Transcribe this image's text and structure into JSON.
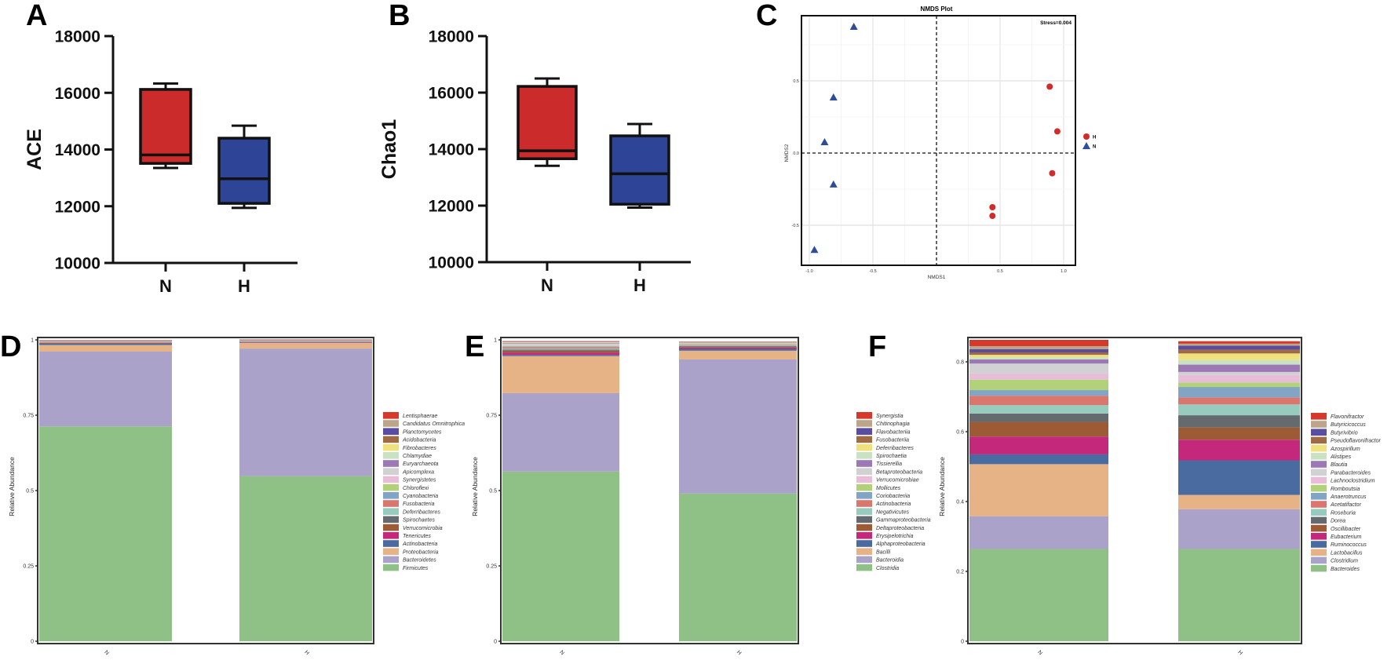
{
  "panel_labels": [
    "A",
    "B",
    "C",
    "D",
    "E",
    "F"
  ],
  "chart_data": [
    {
      "panel": "A",
      "type": "box",
      "ylabel": "ACE",
      "ylim": [
        10000,
        18000
      ],
      "yticks": [
        "10000",
        "12000",
        "14000",
        "16000",
        "18000"
      ],
      "categories": [
        "N",
        "H"
      ],
      "boxes": [
        {
          "group": "N",
          "min": 13350,
          "q1": 13510,
          "median": 13810,
          "q3": 16120,
          "max": 16330,
          "color": "#CC2B2B"
        },
        {
          "group": "H",
          "min": 11940,
          "q1": 12100,
          "median": 12970,
          "q3": 14400,
          "max": 14840,
          "color": "#2E4597"
        }
      ]
    },
    {
      "panel": "B",
      "type": "box",
      "ylabel": "Chao1",
      "ylim": [
        10000,
        18000
      ],
      "yticks": [
        "10000",
        "12000",
        "14000",
        "16000",
        "18000"
      ],
      "categories": [
        "N",
        "H"
      ],
      "boxes": [
        {
          "group": "N",
          "min": 13410,
          "q1": 13660,
          "median": 13940,
          "q3": 16220,
          "max": 16500,
          "color": "#CC2B2B"
        },
        {
          "group": "H",
          "min": 11930,
          "q1": 12050,
          "median": 13130,
          "q3": 14470,
          "max": 14890,
          "color": "#2E4597"
        }
      ]
    },
    {
      "panel": "C",
      "type": "scatter",
      "title": "NMDS Plot",
      "xlabel": "NMDS1",
      "ylabel": "NMDS2",
      "annotation": "Stress=0.004",
      "xlim": [
        -1.05,
        1.1
      ],
      "ylim": [
        -0.78,
        0.95
      ],
      "xticks": [
        "-1.0",
        "-0.5",
        "0.5",
        "1.0"
      ],
      "yticks": [
        "0.5",
        "0.0",
        "-0.5"
      ],
      "legend": [
        {
          "name": "H",
          "shape": "circle",
          "color": "#D22B2B"
        },
        {
          "name": "N",
          "shape": "triangle",
          "color": "#2E4C9A"
        }
      ],
      "series": [
        {
          "name": "H",
          "points": [
            [
              0.89,
              0.46
            ],
            [
              0.95,
              0.15
            ],
            [
              0.91,
              -0.14
            ],
            [
              0.44,
              -0.375
            ],
            [
              0.44,
              -0.435
            ]
          ]
        },
        {
          "name": "N",
          "points": [
            [
              -0.65,
              0.875
            ],
            [
              -0.81,
              0.386
            ],
            [
              -0.88,
              0.076
            ],
            [
              -0.81,
              -0.217
            ],
            [
              -0.96,
              -0.67
            ]
          ]
        }
      ]
    },
    {
      "panel": "D",
      "type": "stacked_bar",
      "ylabel": "Relative Abundance",
      "ylim": [
        0,
        1
      ],
      "yticks": [
        "0",
        "0.25",
        "0.5",
        "0.75",
        "1"
      ],
      "categories": [
        "N",
        "H"
      ],
      "series": [
        {
          "name": "Lentisphaerae",
          "color": "#D7382C",
          "values": [
            0.0005,
            0.0005
          ]
        },
        {
          "name": "Candidatus Omnitrophica",
          "color": "#BBA68A",
          "values": [
            0.0005,
            0.0005
          ]
        },
        {
          "name": "Planctomycetes",
          "color": "#5A4CA0",
          "values": [
            0.0005,
            0.0005
          ]
        },
        {
          "name": "Acidobacteria",
          "color": "#9E6B45",
          "values": [
            0.0005,
            0.0005
          ]
        },
        {
          "name": "Fibrobacteres",
          "color": "#EEE17E",
          "values": [
            0.0005,
            0.0005
          ]
        },
        {
          "name": "Chlamydiae",
          "color": "#C8E2C3",
          "values": [
            0.0005,
            0.0005
          ]
        },
        {
          "name": "Euryarchaeota",
          "color": "#9C78B5",
          "values": [
            0.0005,
            0.002
          ]
        },
        {
          "name": "Apicomplexa",
          "color": "#D1D1D3",
          "values": [
            0.0005,
            0.0005
          ]
        },
        {
          "name": "Synergistetes",
          "color": "#E8BDD8",
          "values": [
            0.0005,
            0.0005
          ]
        },
        {
          "name": "Chloroflexi",
          "color": "#B2D27A",
          "values": [
            0.0005,
            0.0005
          ]
        },
        {
          "name": "Cyanobacteria",
          "color": "#82A4C5",
          "values": [
            0.001,
            0.0005
          ]
        },
        {
          "name": "Fusobacteria",
          "color": "#D9776F",
          "values": [
            0.001,
            0.0005
          ]
        },
        {
          "name": "Deferribacteres",
          "color": "#97CBBD",
          "values": [
            0.001,
            0.0005
          ]
        },
        {
          "name": "Spirochaetes",
          "color": "#646A6E",
          "values": [
            0.001,
            0.0005
          ]
        },
        {
          "name": "Verrucomicrobia",
          "color": "#9D5B35",
          "values": [
            0.002,
            0.001
          ]
        },
        {
          "name": "Tenericutes",
          "color": "#C3287A",
          "values": [
            0.001,
            0.001
          ]
        },
        {
          "name": "Actinobacteria",
          "color": "#4A6BA0",
          "values": [
            0.004,
            0.001
          ]
        },
        {
          "name": "Proteobacteria",
          "color": "#E6B387",
          "values": [
            0.022,
            0.019
          ]
        },
        {
          "name": "Bacteroidetes",
          "color": "#AAA2C9",
          "values": [
            0.248,
            0.423
          ]
        },
        {
          "name": "Firmicutes",
          "color": "#8FC186",
          "values": [
            0.713,
            0.548
          ]
        }
      ]
    },
    {
      "panel": "E",
      "type": "stacked_bar",
      "ylabel": "Relative Abundance",
      "ylim": [
        0,
        1
      ],
      "yticks": [
        "0",
        "0.25",
        "0.5",
        "0.75",
        "1"
      ],
      "categories": [
        "N",
        "H"
      ],
      "series": [
        {
          "name": "Synergistia",
          "color": "#D7382C",
          "values": [
            0.001,
            0.0005
          ]
        },
        {
          "name": "Chitinophagia",
          "color": "#BBA68A",
          "values": [
            0.001,
            0.0005
          ]
        },
        {
          "name": "Flavobacteriia",
          "color": "#5A4CA0",
          "values": [
            0.001,
            0.0005
          ]
        },
        {
          "name": "Fusobacteriia",
          "color": "#9E6B45",
          "values": [
            0.001,
            0.0005
          ]
        },
        {
          "name": "Deferribacteres",
          "color": "#EEE17E",
          "values": [
            0.001,
            0.001
          ]
        },
        {
          "name": "Spirochaetia",
          "color": "#C8E2C3",
          "values": [
            0.002,
            0.002
          ]
        },
        {
          "name": "Tissierellia",
          "color": "#9C78B5",
          "values": [
            0.002,
            0.001
          ]
        },
        {
          "name": "Betaproteobacteria",
          "color": "#D1D1D3",
          "values": [
            0.004,
            0.001
          ]
        },
        {
          "name": "Verrucomicrobiae",
          "color": "#E8BDD8",
          "values": [
            0.003,
            0.001
          ]
        },
        {
          "name": "Mollicutes",
          "color": "#B2D27A",
          "values": [
            0.002,
            0.002
          ]
        },
        {
          "name": "Coriobacteriia",
          "color": "#82A4C5",
          "values": [
            0.003,
            0.001
          ]
        },
        {
          "name": "Actinobacteria",
          "color": "#D9776F",
          "values": [
            0.004,
            0.002
          ]
        },
        {
          "name": "Negativicutes",
          "color": "#97CBBD",
          "values": [
            0.003,
            0.002
          ]
        },
        {
          "name": "Gammaproteobacteria",
          "color": "#646A6E",
          "values": [
            0.004,
            0.003
          ]
        },
        {
          "name": "Deltaproteobacteria",
          "color": "#9D5B35",
          "values": [
            0.006,
            0.002
          ]
        },
        {
          "name": "Erysipelotrichia",
          "color": "#C3287A",
          "values": [
            0.008,
            0.004
          ]
        },
        {
          "name": "Alphaproteobacteria",
          "color": "#4A6BA0",
          "values": [
            0.004,
            0.006
          ]
        },
        {
          "name": "Bacilli",
          "color": "#E6B387",
          "values": [
            0.123,
            0.029
          ]
        },
        {
          "name": "Bacteroidia",
          "color": "#AAA2C9",
          "values": [
            0.26,
            0.445
          ]
        },
        {
          "name": "Clostridia",
          "color": "#8FC186",
          "values": [
            0.563,
            0.49
          ]
        }
      ]
    },
    {
      "panel": "F",
      "type": "stacked_bar",
      "ylabel": "Relative Abundance",
      "ylim": [
        0,
        0.87
      ],
      "yticks": [
        "0",
        "0.2",
        "0.4",
        "0.6",
        "0.8"
      ],
      "categories": [
        "N",
        "H"
      ],
      "series": [
        {
          "name": "Flavonifractor",
          "color": "#D7382C",
          "values": [
            0.018,
            0.007
          ]
        },
        {
          "name": "Butyricicoccus",
          "color": "#BBA68A",
          "values": [
            0.009,
            0.006
          ]
        },
        {
          "name": "Butyrivibrio",
          "color": "#5A4CA0",
          "values": [
            0.009,
            0.011
          ]
        },
        {
          "name": "Pseudoflavonifractor",
          "color": "#9E6B45",
          "values": [
            0.007,
            0.011
          ]
        },
        {
          "name": "Azospirillum",
          "color": "#EEE17E",
          "values": [
            0.007,
            0.019
          ]
        },
        {
          "name": "Alistipes",
          "color": "#C8E2C3",
          "values": [
            0.006,
            0.013
          ]
        },
        {
          "name": "Blautia",
          "color": "#9C78B5",
          "values": [
            0.012,
            0.021
          ]
        },
        {
          "name": "Parabacteroides",
          "color": "#D1D1D3",
          "values": [
            0.028,
            0.009
          ]
        },
        {
          "name": "Lachnoclostridium",
          "color": "#E8BDD8",
          "values": [
            0.018,
            0.021
          ]
        },
        {
          "name": "Romboutsia",
          "color": "#B2D27A",
          "values": [
            0.03,
            0.013
          ]
        },
        {
          "name": "Anaerotruncus",
          "color": "#82A4C5",
          "values": [
            0.016,
            0.03
          ]
        },
        {
          "name": "Acetatifactor",
          "color": "#D9776F",
          "values": [
            0.027,
            0.02
          ]
        },
        {
          "name": "Roseburia",
          "color": "#97CBBD",
          "values": [
            0.024,
            0.031
          ]
        },
        {
          "name": "Dorea",
          "color": "#646A6E",
          "values": [
            0.024,
            0.035
          ]
        },
        {
          "name": "Oscillibacter",
          "color": "#9D5B35",
          "values": [
            0.042,
            0.035
          ]
        },
        {
          "name": "Eubacterium",
          "color": "#C3287A",
          "values": [
            0.051,
            0.059
          ]
        },
        {
          "name": "Ruminococcus",
          "color": "#4A6BA0",
          "values": [
            0.028,
            0.099
          ]
        },
        {
          "name": "Lactobacillus",
          "color": "#E6B387",
          "values": [
            0.149,
            0.041
          ]
        },
        {
          "name": "Clostridium",
          "color": "#AAA2C9",
          "values": [
            0.094,
            0.114
          ]
        },
        {
          "name": "Bacteroides",
          "color": "#8FC186",
          "values": [
            0.264,
            0.264
          ]
        }
      ]
    }
  ]
}
